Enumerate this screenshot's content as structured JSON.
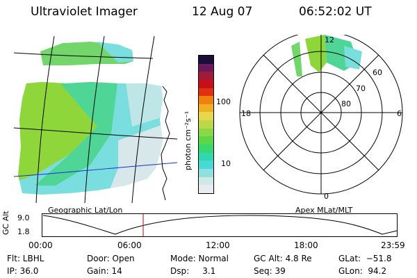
{
  "header": {
    "title": "Ultraviolet Imager",
    "date": "12 Aug 07",
    "time": "06:52:02 UT"
  },
  "colorbar": {
    "unit_label": "photon cm⁻²s⁻¹",
    "ticks": [
      "100",
      "10"
    ],
    "colors": [
      "#1a0f3a",
      "#6a1a5a",
      "#a01b3a",
      "#c8101a",
      "#e03010",
      "#f08010",
      "#f0b020",
      "#e6d84a",
      "#bcd84a",
      "#8ad848",
      "#5ad848",
      "#38d870",
      "#30d8b0",
      "#48d8d8",
      "#90e0e0",
      "#d0e8e8",
      "#e8ecee"
    ]
  },
  "geo_map": {
    "label": "Geographic Lat/Lon",
    "colors": {
      "bright": "#8fd63a",
      "mid": "#4fd696",
      "dim": "#7adede",
      "faint": "#d8e8ea"
    }
  },
  "polar_plot": {
    "label": "Apex MLat/MLT",
    "mlt_labels": {
      "top": "12",
      "left": "18",
      "right": "6",
      "bottom": "0"
    },
    "lat_labels": [
      "60",
      "70",
      "80"
    ]
  },
  "altitude_strip": {
    "ylabel": "GC Alt",
    "yticks": [
      "9.0",
      "1.8"
    ],
    "xticks": [
      "00:00",
      "06:00",
      "12:00",
      "18:00",
      "23:59"
    ],
    "marker_color": "#cc0000"
  },
  "info": {
    "flt": "Flt: LBHL",
    "ip": "IP: 36.0",
    "door": "Door: Open",
    "gain": "Gain: 14",
    "mode": "Mode: Normal",
    "dsp": "Dsp:     3.1",
    "gcalt": "GC Alt: 4.8 Re",
    "seq": "Seq: 39",
    "glat": "GLat:  −51.8",
    "glon": "GLon:  94.2"
  }
}
